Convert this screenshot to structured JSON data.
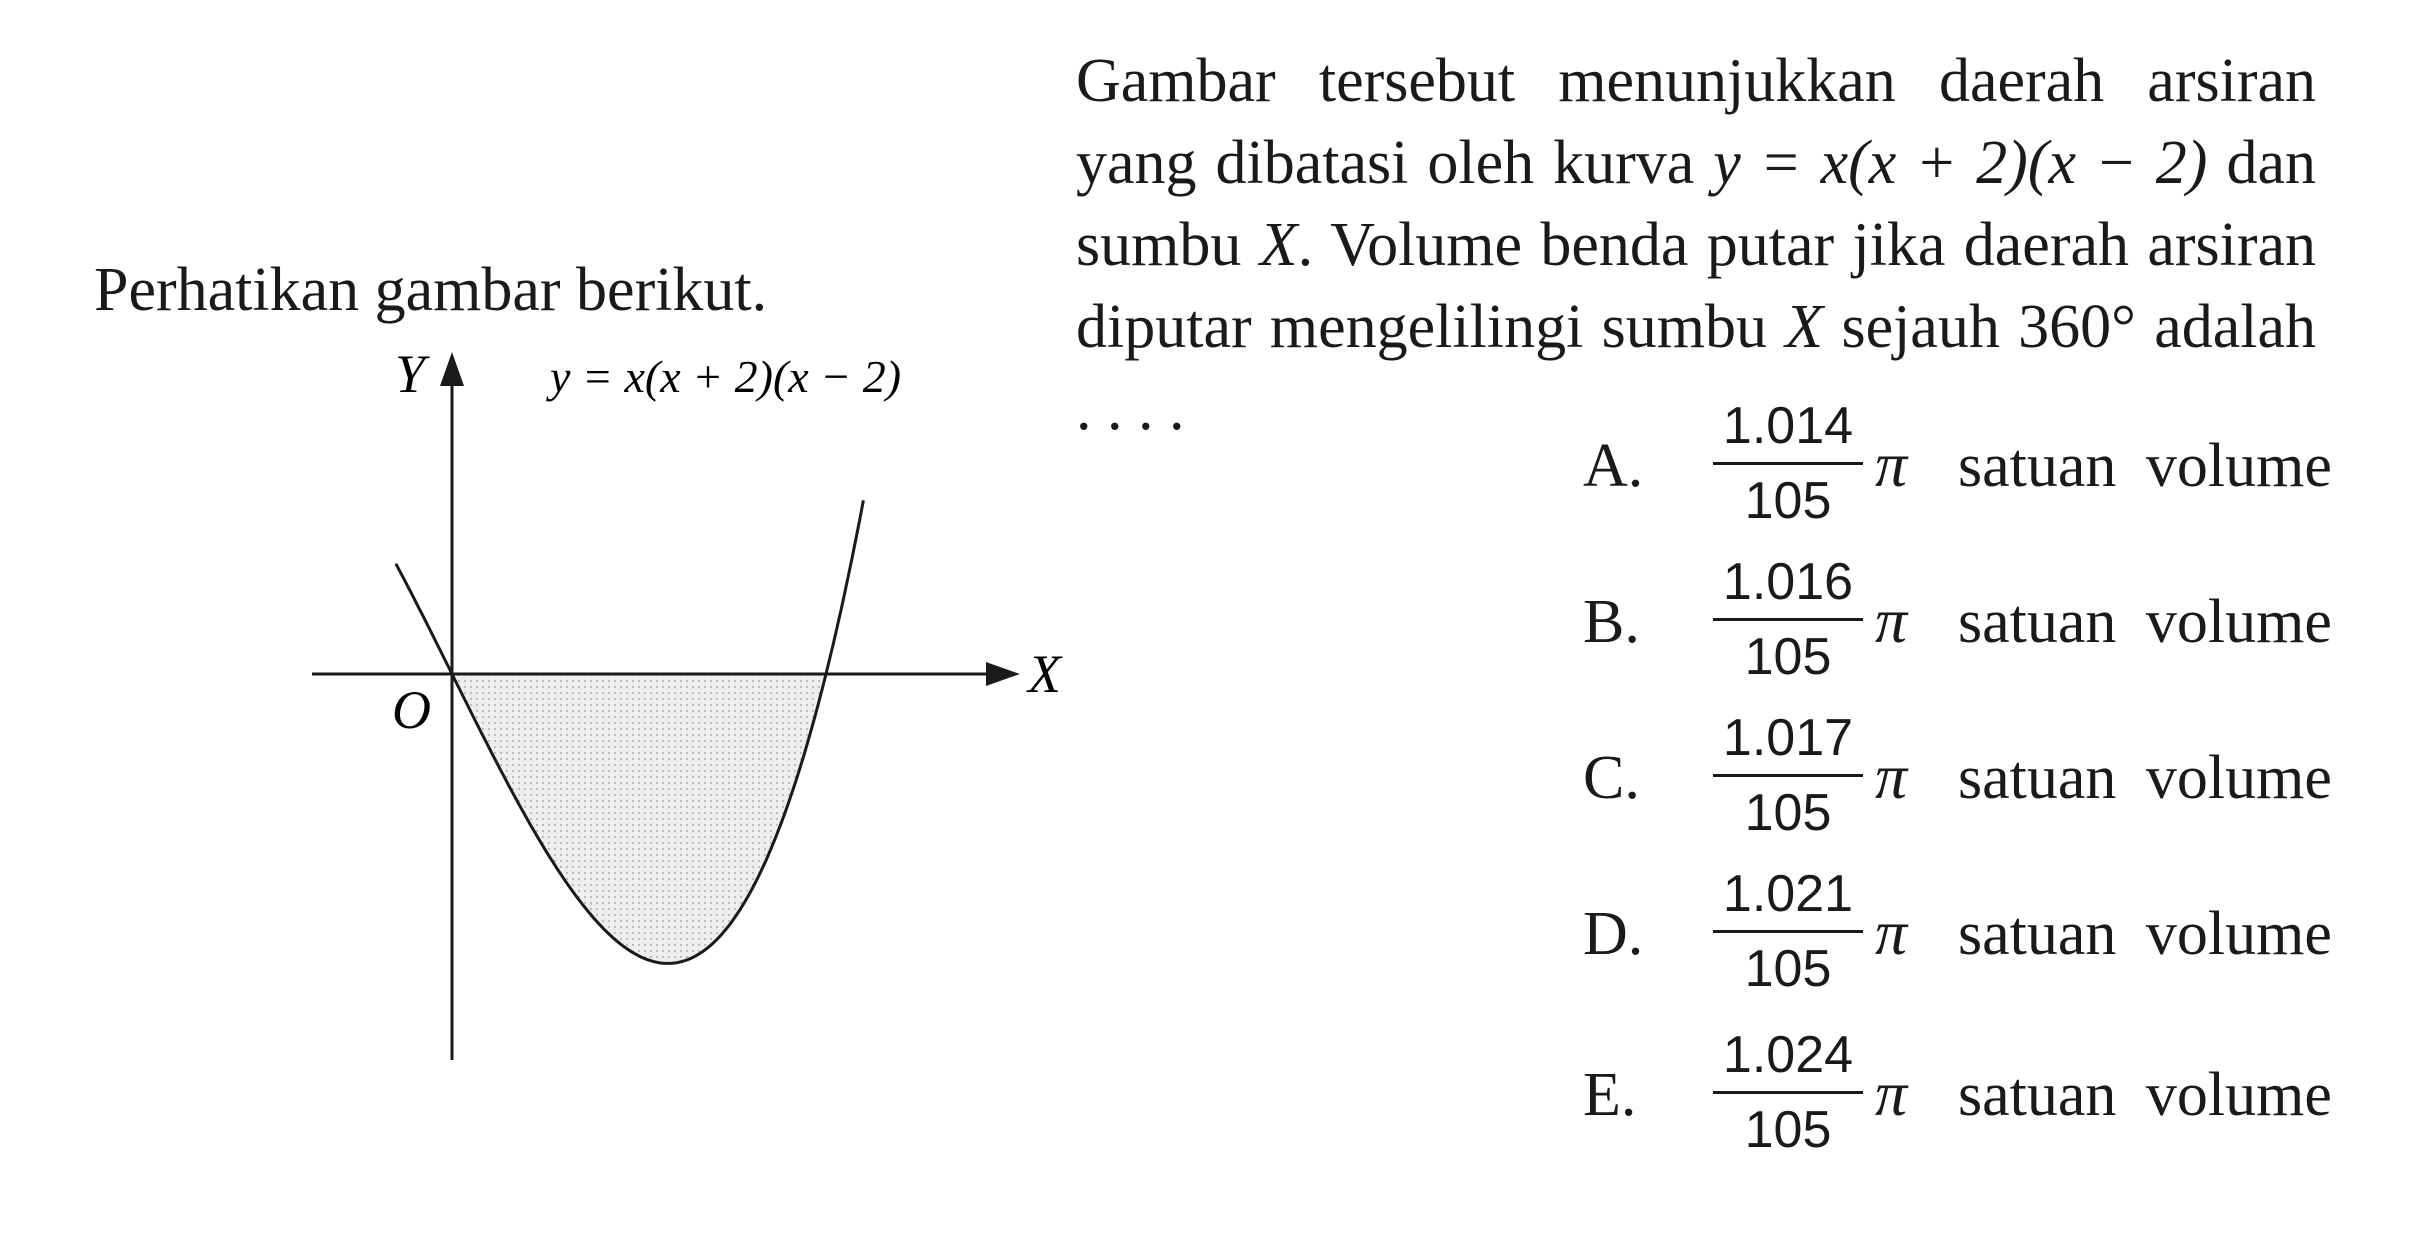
{
  "intro": "Perhatikan gambar berikut.",
  "figure": {
    "y_axis_label": "Y",
    "x_axis_label": "X",
    "origin_label": "O",
    "curve_label": "y = x(x + 2)(x − 2)"
  },
  "question": {
    "parts": [
      "Gambar tersebut menunjukkan daerah arsiran yang dibatasi oleh kurva ",
      "y = x(x + 2)(x − 2)",
      " dan sumbu ",
      "X",
      ". Volume benda putar jika daerah arsiran diputar mengelilingi sumbu ",
      "X",
      " sejauh 360° adalah . . . ."
    ]
  },
  "options": [
    {
      "letter": "A.",
      "numerator": "1.014",
      "denominator": "105",
      "symbol": "π",
      "unit": "satuan volume"
    },
    {
      "letter": "B.",
      "numerator": "1.016",
      "denominator": "105",
      "symbol": "π",
      "unit": "satuan volume"
    },
    {
      "letter": "C.",
      "numerator": "1.017",
      "denominator": "105",
      "symbol": "π",
      "unit": "satuan volume"
    },
    {
      "letter": "D.",
      "numerator": "1.021",
      "denominator": "105",
      "symbol": "π",
      "unit": "satuan volume"
    },
    {
      "letter": "E.",
      "numerator": "1.024",
      "denominator": "105",
      "symbol": "π",
      "unit": "satuan volume"
    }
  ]
}
